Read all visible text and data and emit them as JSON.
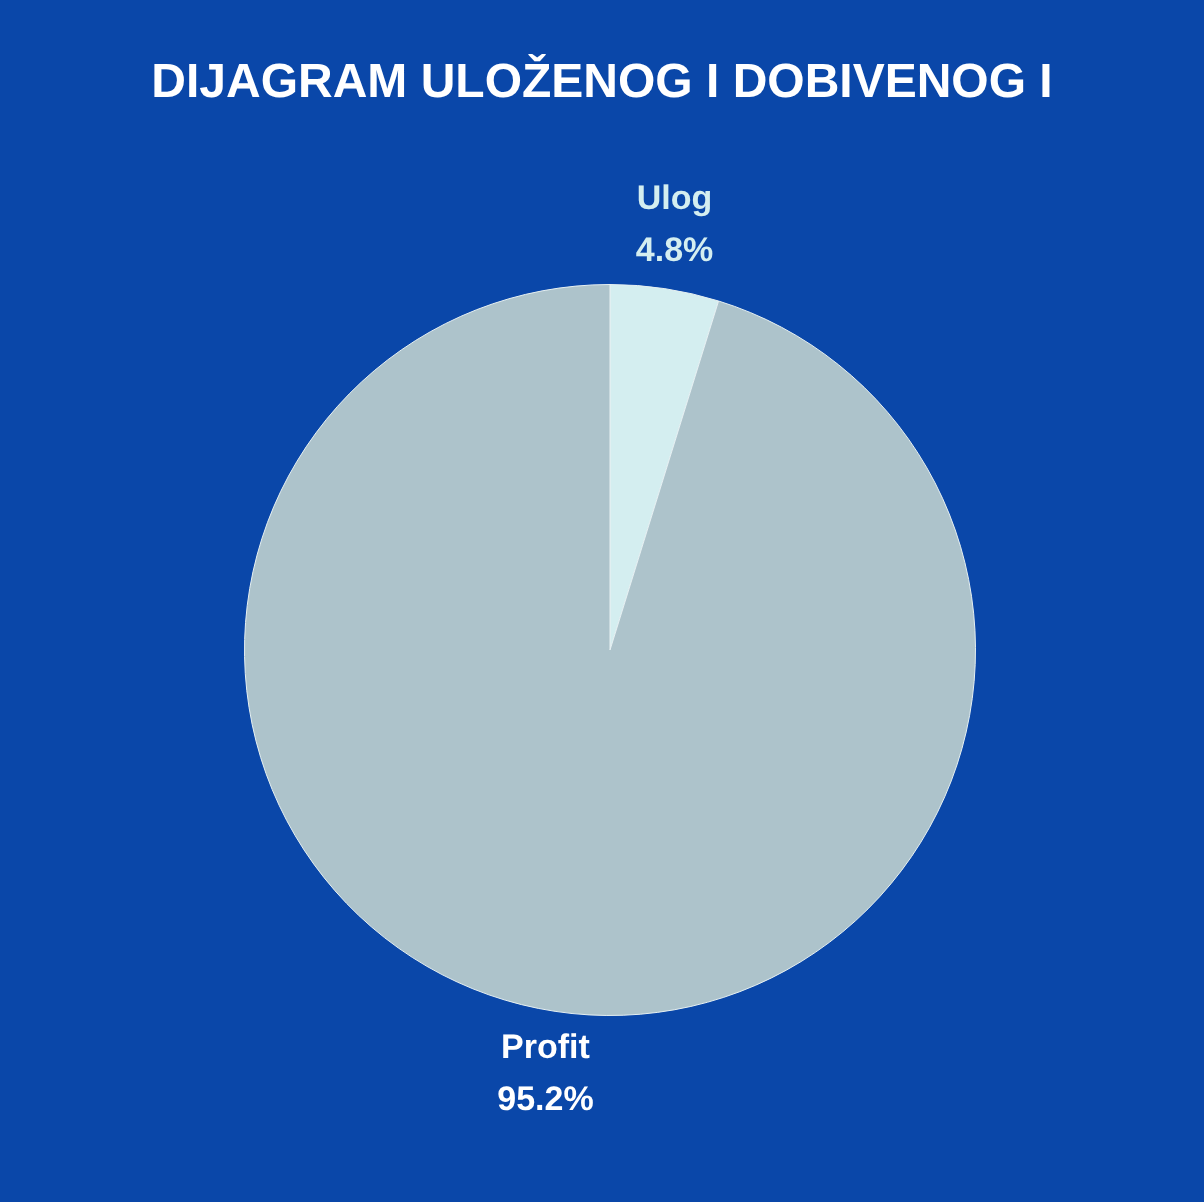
{
  "chart_data": {
    "type": "pie",
    "title": "DIJAGRAM ULOŽENOG I DOBIVENOG I",
    "categories": [
      "Ulog",
      "Profit"
    ],
    "values": [
      4.8,
      95.2
    ],
    "colors": [
      "#d4eef0",
      "#adc3cb"
    ],
    "value_labels": [
      "4.8%",
      "95.2%"
    ],
    "legend": false
  }
}
